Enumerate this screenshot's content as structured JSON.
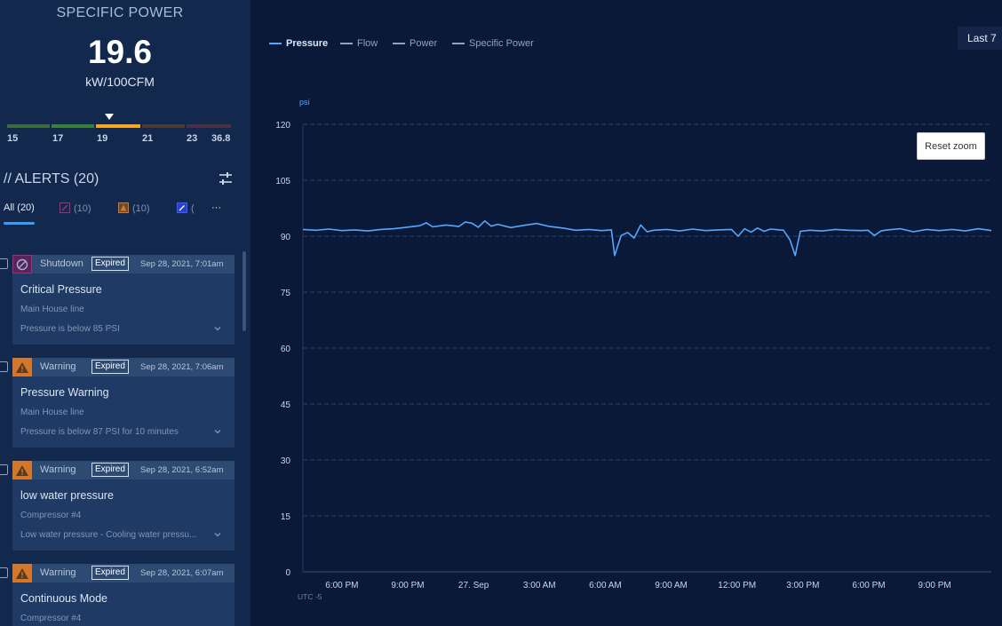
{
  "specific_power": {
    "title": "SPECIFIC POWER",
    "value": "19.6",
    "unit": "kW/100CFM",
    "scale_labels": [
      "15",
      "17",
      "19",
      "21",
      "23",
      "36.8"
    ],
    "scale_colors": [
      "#3b6b3b",
      "#3a7f3c",
      "#f5a623",
      "#4a3b35",
      "#4a2f45"
    ]
  },
  "alerts": {
    "title": "// ALERTS (20)",
    "filter_icon": "sliders-icon",
    "tabs": [
      {
        "label": "All (20)",
        "icon": ""
      },
      {
        "label": "(10)",
        "icon": "shutdown-icon"
      },
      {
        "label": "(10)",
        "icon": "warning-icon"
      },
      {
        "label": "(",
        "icon": "maintenance-icon"
      },
      {
        "label": "···",
        "icon": ""
      }
    ],
    "items": [
      {
        "type": "Shutdown",
        "badge": "Expired",
        "date": "Sep 28, 2021, 7:01am",
        "title": "Critical Pressure",
        "source": "Main House line",
        "description": "Pressure is below 85 PSI",
        "icon": "shutdown-icon",
        "color": "#a0307a"
      },
      {
        "type": "Warning",
        "badge": "Expired",
        "date": "Sep 28, 2021, 7:06am",
        "title": "Pressure Warning",
        "source": "Main House line",
        "description": "Pressure is below 87 PSI for 10 minutes",
        "icon": "warning-icon",
        "color": "#d2772b"
      },
      {
        "type": "Warning",
        "badge": "Expired",
        "date": "Sep 28, 2021, 6:52am",
        "title": "low water pressure",
        "source": "Compressor #4",
        "description": "Low water pressure - Cooling water pressu...",
        "icon": "warning-icon",
        "color": "#d2772b"
      },
      {
        "type": "Warning",
        "badge": "Expired",
        "date": "Sep 28, 2021, 6:07am",
        "title": "Continuous Mode",
        "source": "Compressor #4",
        "description": "",
        "icon": "warning-icon",
        "color": "#d2772b"
      }
    ]
  },
  "chart": {
    "legend": [
      {
        "label": "Pressure",
        "active": true
      },
      {
        "label": "Flow",
        "active": false
      },
      {
        "label": "Power",
        "active": false
      },
      {
        "label": "Specific Power",
        "active": false
      }
    ],
    "range_button": "Last 7",
    "reset_zoom": "Reset zoom",
    "timezone": "UTC -5"
  },
  "chart_data": {
    "type": "line",
    "ylabel": "psi",
    "ylim": [
      0,
      120
    ],
    "yticks": [
      0,
      15,
      30,
      45,
      60,
      75,
      90,
      105,
      120
    ],
    "xlim": [
      -6,
      100
    ],
    "xticks": [
      {
        "t": 0,
        "label": "6:00 PM"
      },
      {
        "t": 10.14,
        "label": "9:00 PM"
      },
      {
        "t": 20.28,
        "label": "27. Sep"
      },
      {
        "t": 30.42,
        "label": "3:00 AM"
      },
      {
        "t": 40.56,
        "label": "6:00 AM"
      },
      {
        "t": 50.7,
        "label": "9:00 AM"
      },
      {
        "t": 60.84,
        "label": "12:00 PM"
      },
      {
        "t": 70.98,
        "label": "3:00 PM"
      },
      {
        "t": 81.12,
        "label": "6:00 PM"
      },
      {
        "t": 91.26,
        "label": "9:00 PM"
      }
    ],
    "series": [
      {
        "name": "Pressure",
        "color": "#55a7ff",
        "points": [
          [
            -6,
            91.8
          ],
          [
            -4,
            91.6
          ],
          [
            -2,
            91.9
          ],
          [
            0,
            91.5
          ],
          [
            2,
            91.7
          ],
          [
            4,
            91.4
          ],
          [
            6,
            91.8
          ],
          [
            8,
            92.0
          ],
          [
            10,
            92.4
          ],
          [
            12,
            92.8
          ],
          [
            13,
            93.6
          ],
          [
            14,
            92.5
          ],
          [
            16,
            93.0
          ],
          [
            18,
            92.6
          ],
          [
            19,
            93.8
          ],
          [
            20,
            93.5
          ],
          [
            21,
            92.4
          ],
          [
            22,
            94.1
          ],
          [
            23,
            92.7
          ],
          [
            24,
            93.2
          ],
          [
            26,
            92.3
          ],
          [
            28,
            92.9
          ],
          [
            30,
            93.4
          ],
          [
            32,
            92.6
          ],
          [
            34,
            92.2
          ],
          [
            36,
            91.6
          ],
          [
            38,
            91.8
          ],
          [
            40,
            91.5
          ],
          [
            41.5,
            91.7
          ],
          [
            42,
            84.8
          ],
          [
            43,
            90.2
          ],
          [
            44,
            91.0
          ],
          [
            45,
            89.5
          ],
          [
            46,
            93.0
          ],
          [
            47,
            91.2
          ],
          [
            48,
            91.6
          ],
          [
            50,
            91.8
          ],
          [
            52,
            91.4
          ],
          [
            54,
            91.9
          ],
          [
            56,
            91.5
          ],
          [
            58,
            91.7
          ],
          [
            60,
            91.8
          ],
          [
            61,
            90.0
          ],
          [
            62,
            92.0
          ],
          [
            63,
            91.1
          ],
          [
            64,
            92.2
          ],
          [
            65,
            91.3
          ],
          [
            66,
            91.9
          ],
          [
            68,
            91.6
          ],
          [
            69,
            89.0
          ],
          [
            69.8,
            84.8
          ],
          [
            70.6,
            91.3
          ],
          [
            72,
            91.6
          ],
          [
            74,
            91.4
          ],
          [
            76,
            91.8
          ],
          [
            78,
            91.6
          ],
          [
            80,
            91.5
          ],
          [
            81,
            91.6
          ],
          [
            82,
            90.2
          ],
          [
            83,
            91.4
          ],
          [
            84,
            91.7
          ],
          [
            86,
            92.0
          ],
          [
            88,
            91.2
          ],
          [
            90,
            91.8
          ],
          [
            92,
            91.5
          ],
          [
            94,
            91.8
          ],
          [
            96,
            91.4
          ],
          [
            98,
            92.0
          ],
          [
            100,
            91.5
          ]
        ]
      }
    ],
    "grid": true
  }
}
